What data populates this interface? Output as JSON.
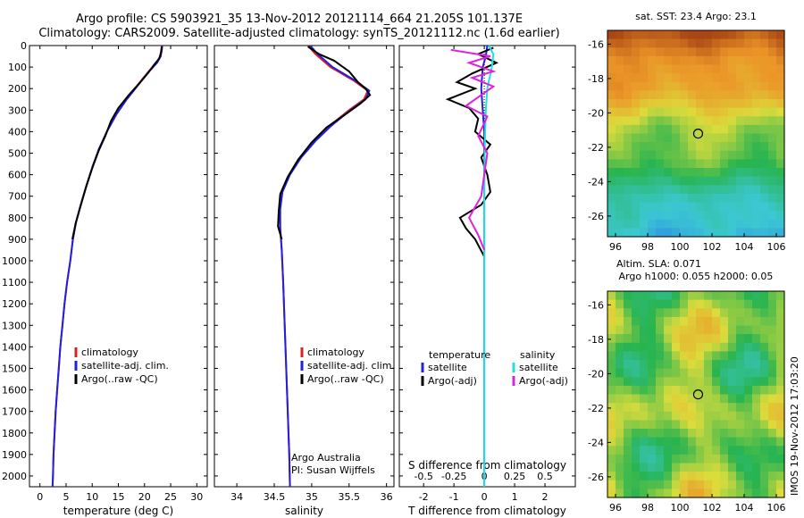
{
  "header": {
    "line1": "Argo profile: CS 5903921_35 13-Nov-2012 20121114_664 21.205S 101.137E",
    "line2": "Climatology: CARS2009. Satellite-adjusted climatology: synTS_20121112.nc (1.6d earlier)"
  },
  "footer_stamp": "IMOS 19-Nov-2012 17:03:20",
  "colors": {
    "clim": "#e02020",
    "sat": "#2020e0",
    "argo": "#000000",
    "sat_s": "#20e0e0",
    "argo_s": "#e020e0"
  },
  "chart_data": [
    {
      "type": "line",
      "name": "temperature",
      "xlabel": "temperature (deg C)",
      "xlim": [
        -2,
        32
      ],
      "ylim": [
        0,
        2050
      ],
      "xticks": [
        0,
        5,
        10,
        15,
        20,
        25,
        30
      ],
      "yticks": [
        0,
        100,
        200,
        300,
        400,
        500,
        600,
        700,
        800,
        900,
        1000,
        1100,
        1200,
        1300,
        1400,
        1500,
        1600,
        1700,
        1800,
        1900,
        2000
      ],
      "legend": [
        "climatology",
        "satellite-adj. clim.",
        "Argo(..raw -QC)"
      ],
      "legend_position": "lower-center",
      "series": [
        {
          "name": "climatology",
          "color": "#e02020",
          "points": [
            [
              23.3,
              0
            ],
            [
              23.2,
              20
            ],
            [
              23,
              50
            ],
            [
              22.3,
              80
            ],
            [
              20.8,
              120
            ],
            [
              18.8,
              180
            ],
            [
              16.5,
              250
            ],
            [
              14.6,
              320
            ],
            [
              12.8,
              400
            ],
            [
              11.3,
              480
            ],
            [
              10.1,
              560
            ],
            [
              8.9,
              650
            ],
            [
              7.8,
              740
            ],
            [
              6.9,
              820
            ],
            [
              6.3,
              900
            ],
            [
              5.8,
              1000
            ],
            [
              5.2,
              1100
            ],
            [
              4.7,
              1200
            ],
            [
              4.3,
              1300
            ],
            [
              3.9,
              1400
            ],
            [
              3.6,
              1500
            ],
            [
              3.3,
              1600
            ],
            [
              3.0,
              1700
            ],
            [
              2.8,
              1800
            ],
            [
              2.6,
              1900
            ],
            [
              2.5,
              2000
            ],
            [
              2.4,
              2050
            ]
          ]
        },
        {
          "name": "satellite-adj. clim.",
          "color": "#2020e0",
          "points": [
            [
              23.4,
              0
            ],
            [
              23.3,
              20
            ],
            [
              23.1,
              50
            ],
            [
              22.4,
              80
            ],
            [
              20.9,
              120
            ],
            [
              18.9,
              180
            ],
            [
              16.6,
              250
            ],
            [
              14.6,
              320
            ],
            [
              12.8,
              400
            ],
            [
              11.3,
              480
            ],
            [
              10.1,
              560
            ],
            [
              8.9,
              650
            ],
            [
              7.8,
              740
            ],
            [
              6.9,
              820
            ],
            [
              6.3,
              900
            ],
            [
              5.8,
              1000
            ],
            [
              5.2,
              1100
            ],
            [
              4.7,
              1200
            ],
            [
              4.3,
              1300
            ],
            [
              3.9,
              1400
            ],
            [
              3.6,
              1500
            ],
            [
              3.3,
              1600
            ],
            [
              3.0,
              1700
            ],
            [
              2.8,
              1800
            ],
            [
              2.6,
              1900
            ],
            [
              2.5,
              2000
            ],
            [
              2.4,
              2050
            ]
          ]
        },
        {
          "name": "Argo(..raw -QC)",
          "color": "#000000",
          "points": [
            [
              23.3,
              5
            ],
            [
              23.2,
              30
            ],
            [
              22.8,
              60
            ],
            [
              21.8,
              90
            ],
            [
              20.6,
              130
            ],
            [
              19.2,
              170
            ],
            [
              17.0,
              230
            ],
            [
              15.0,
              290
            ],
            [
              13.6,
              350
            ],
            [
              12.5,
              420
            ],
            [
              11.2,
              490
            ],
            [
              10.0,
              570
            ],
            [
              8.8,
              660
            ],
            [
              7.6,
              760
            ],
            [
              6.8,
              830
            ],
            [
              6.2,
              900
            ]
          ]
        }
      ]
    },
    {
      "type": "line",
      "name": "salinity",
      "xlabel": "salinity",
      "xlim": [
        33.7,
        36.1
      ],
      "ylim": [
        0,
        2050
      ],
      "xticks": [
        34,
        34.5,
        35,
        35.5,
        36
      ],
      "legend": [
        "climatology",
        "satellite-adj. clim.",
        "Argo(..raw -QC)"
      ],
      "legend_position": "lower-center",
      "annotation": [
        "Argo Australia",
        "PI: Susan Wijffels"
      ],
      "series": [
        {
          "name": "climatology",
          "color": "#e02020",
          "points": [
            [
              34.95,
              0
            ],
            [
              35.05,
              40
            ],
            [
              35.25,
              100
            ],
            [
              35.55,
              160
            ],
            [
              35.75,
              210
            ],
            [
              35.7,
              250
            ],
            [
              35.5,
              300
            ],
            [
              35.25,
              370
            ],
            [
              35.05,
              440
            ],
            [
              34.85,
              520
            ],
            [
              34.7,
              600
            ],
            [
              34.6,
              680
            ],
            [
              34.57,
              760
            ],
            [
              34.58,
              850
            ],
            [
              34.6,
              950
            ],
            [
              34.62,
              1100
            ],
            [
              34.64,
              1300
            ],
            [
              34.66,
              1500
            ],
            [
              34.68,
              1700
            ],
            [
              34.7,
              1900
            ],
            [
              34.71,
              2050
            ]
          ]
        },
        {
          "name": "satellite-adj. clim.",
          "color": "#2020e0",
          "points": [
            [
              34.98,
              0
            ],
            [
              35.08,
              40
            ],
            [
              35.28,
              100
            ],
            [
              35.57,
              160
            ],
            [
              35.77,
              210
            ],
            [
              35.72,
              250
            ],
            [
              35.52,
              300
            ],
            [
              35.27,
              370
            ],
            [
              35.06,
              440
            ],
            [
              34.86,
              520
            ],
            [
              34.71,
              600
            ],
            [
              34.61,
              680
            ],
            [
              34.58,
              760
            ],
            [
              34.58,
              850
            ],
            [
              34.6,
              950
            ],
            [
              34.62,
              1100
            ],
            [
              34.64,
              1300
            ],
            [
              34.66,
              1500
            ],
            [
              34.68,
              1700
            ],
            [
              34.7,
              1900
            ],
            [
              34.71,
              2050
            ]
          ]
        },
        {
          "name": "Argo(..raw -QC)",
          "color": "#000000",
          "points": [
            [
              34.95,
              5
            ],
            [
              35.1,
              40
            ],
            [
              35.3,
              70
            ],
            [
              35.5,
              120
            ],
            [
              35.62,
              170
            ],
            [
              35.72,
              200
            ],
            [
              35.78,
              230
            ],
            [
              35.65,
              270
            ],
            [
              35.45,
              320
            ],
            [
              35.2,
              380
            ],
            [
              35.0,
              450
            ],
            [
              34.82,
              530
            ],
            [
              34.68,
              610
            ],
            [
              34.58,
              690
            ],
            [
              34.56,
              770
            ],
            [
              34.55,
              840
            ],
            [
              34.6,
              900
            ]
          ]
        }
      ]
    },
    {
      "type": "line",
      "name": "difference",
      "xlabel": "T difference from climatology",
      "xlabel2": "S difference from climatology",
      "xlim": [
        -2.8,
        3
      ],
      "ylim": [
        0,
        2050
      ],
      "xticks": [
        -2,
        -1,
        0,
        1,
        2
      ],
      "xticks2": [
        {
          "v": -0.5,
          "t": "-0.5"
        },
        {
          "v": -0.25,
          "t": "-0.25"
        },
        {
          "v": 0,
          "t": "0"
        },
        {
          "v": 0.25,
          "t": "0.25"
        },
        {
          "v": 0.5,
          "t": "0.5"
        }
      ],
      "legend_groups": [
        {
          "title": "temperature",
          "items": [
            "satellite",
            "Argo(-adj)"
          ]
        },
        {
          "title": "salinity",
          "items": [
            "satellite",
            "Argo(-adj)"
          ]
        }
      ],
      "series": [
        {
          "name": "temperature satellite",
          "color": "#2020e0",
          "points": [
            [
              0.1,
              0
            ],
            [
              0.05,
              50
            ],
            [
              -0.05,
              100
            ],
            [
              -0.1,
              200
            ],
            [
              -0.05,
              300
            ],
            [
              0,
              400
            ],
            [
              0,
              500
            ],
            [
              0,
              700
            ],
            [
              0,
              900
            ],
            [
              0,
              1200
            ],
            [
              0,
              1600
            ],
            [
              0,
              2050
            ]
          ]
        },
        {
          "name": "temperature Argo(-adj)",
          "color": "#000000",
          "points": [
            [
              0.3,
              10
            ],
            [
              -0.2,
              40
            ],
            [
              0.4,
              80
            ],
            [
              -0.4,
              130
            ],
            [
              -0.9,
              170
            ],
            [
              -0.3,
              200
            ],
            [
              -1.2,
              250
            ],
            [
              -0.5,
              290
            ],
            [
              -0.2,
              340
            ],
            [
              -0.3,
              400
            ],
            [
              0.2,
              460
            ],
            [
              -0.1,
              520
            ],
            [
              0.1,
              600
            ],
            [
              0.2,
              680
            ],
            [
              -0.1,
              740
            ],
            [
              -0.8,
              800
            ],
            [
              -0.6,
              850
            ],
            [
              -0.3,
              900
            ],
            [
              0,
              980
            ]
          ]
        },
        {
          "name": "salinity satellite",
          "color": "#20e0e0",
          "points": [
            [
              0.15,
              0
            ],
            [
              0.3,
              40
            ],
            [
              0.25,
              100
            ],
            [
              0.1,
              200
            ],
            [
              0.05,
              300
            ],
            [
              0.02,
              450
            ],
            [
              0,
              600
            ],
            [
              0,
              800
            ],
            [
              0,
              1100
            ],
            [
              0,
              1500
            ],
            [
              0,
              2050
            ]
          ]
        },
        {
          "name": "salinity Argo(-adj)",
          "color": "#e020e0",
          "points": [
            [
              -1.1,
              20
            ],
            [
              0.2,
              50
            ],
            [
              -0.5,
              80
            ],
            [
              0.3,
              120
            ],
            [
              -0.4,
              150
            ],
            [
              0.3,
              190
            ],
            [
              -0.2,
              240
            ],
            [
              -0.6,
              280
            ],
            [
              0.1,
              330
            ],
            [
              -0.2,
              420
            ],
            [
              0.1,
              500
            ],
            [
              0,
              600
            ],
            [
              -0.1,
              700
            ],
            [
              -0.5,
              800
            ],
            [
              -0.2,
              880
            ],
            [
              0,
              950
            ]
          ]
        }
      ]
    },
    {
      "type": "heatmap",
      "name": "sst_map",
      "title": "sat. SST: 23.4 Argo: 23.1",
      "xlim": [
        95.5,
        106.5
      ],
      "ylim": [
        -27.2,
        -15.2
      ],
      "xticks": [
        96,
        98,
        100,
        102,
        104,
        106
      ],
      "yticks": [
        -16,
        -18,
        -20,
        -22,
        -24,
        -26
      ],
      "marker": {
        "lon": 101.137,
        "lat": -21.205
      }
    },
    {
      "type": "heatmap",
      "name": "sla_map",
      "title": "Altim. SLA: 0.071",
      "subtitle": "Argo h1000: 0.055 h2000: 0.05",
      "xlim": [
        95.5,
        106.5
      ],
      "ylim": [
        -27.2,
        -15.2
      ],
      "xticks": [
        96,
        98,
        100,
        102,
        104,
        106
      ],
      "yticks": [
        -16,
        -18,
        -20,
        -22,
        -24,
        -26
      ],
      "marker": {
        "lon": 101.137,
        "lat": -21.205
      }
    }
  ]
}
